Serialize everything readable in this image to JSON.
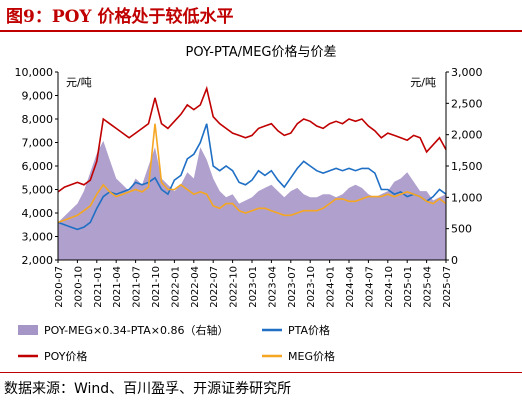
{
  "figure": {
    "title": "图9：POY 价格处于较低水平",
    "source": "数据来源：Wind、百川盈孚、开源证券研究所"
  },
  "colors": {
    "accent": "#c00000",
    "pta": "#1f6fc5",
    "poy": "#c00000",
    "meg": "#f5a623",
    "spread": "#a696c8"
  },
  "chart_data": {
    "type": "line",
    "title": "POY-PTA/MEG价格与价差",
    "left_unit": "元/吨",
    "right_unit": "元/吨",
    "ylim_left": [
      2000,
      10000
    ],
    "ylim_right": [
      0,
      3000
    ],
    "yticks_left": [
      "2,000",
      "3,000",
      "4,000",
      "5,000",
      "6,000",
      "7,000",
      "8,000",
      "9,000",
      "10,000"
    ],
    "yticks_right": [
      "0",
      "500",
      "1,000",
      "1,500",
      "2,000",
      "2,500",
      "3,000"
    ],
    "xticks": [
      "2020-07",
      "2020-10",
      "2021-01",
      "2021-04",
      "2021-07",
      "2021-10",
      "2022-01",
      "2022-04",
      "2022-07",
      "2022-10",
      "2023-01",
      "2023-04",
      "2023-07",
      "2023-10",
      "2024-01",
      "2024-04",
      "2024-07",
      "2024-10",
      "2025-01",
      "2025-04",
      "2025-07"
    ],
    "grid": false,
    "legend_position": "bottom",
    "x": [
      "2020-07",
      "2020-08",
      "2020-09",
      "2020-10",
      "2020-11",
      "2020-12",
      "2021-01",
      "2021-02",
      "2021-03",
      "2021-04",
      "2021-05",
      "2021-06",
      "2021-07",
      "2021-08",
      "2021-09",
      "2021-10",
      "2021-11",
      "2021-12",
      "2022-01",
      "2022-02",
      "2022-03",
      "2022-04",
      "2022-05",
      "2022-06",
      "2022-07",
      "2022-08",
      "2022-09",
      "2022-10",
      "2022-11",
      "2022-12",
      "2023-01",
      "2023-02",
      "2023-03",
      "2023-04",
      "2023-05",
      "2023-06",
      "2023-07",
      "2023-08",
      "2023-09",
      "2023-10",
      "2023-11",
      "2023-12",
      "2024-01",
      "2024-02",
      "2024-03",
      "2024-04",
      "2024-05",
      "2024-06",
      "2024-07",
      "2024-08",
      "2024-09",
      "2024-10",
      "2024-11",
      "2024-12",
      "2025-01",
      "2025-02",
      "2025-03",
      "2025-04",
      "2025-05",
      "2025-06",
      "2025-07"
    ],
    "series": [
      {
        "name": "POY-MEG×0.34-PTA×0.86（右轴）",
        "type": "area",
        "axis": "right",
        "values": [
          600,
          700,
          800,
          900,
          1100,
          1400,
          1700,
          1900,
          1600,
          1300,
          1200,
          1100,
          1300,
          1200,
          1500,
          1800,
          1300,
          1200,
          1100,
          1200,
          1400,
          1300,
          1800,
          1600,
          1300,
          1100,
          1000,
          1050,
          900,
          950,
          1000,
          1100,
          1150,
          1200,
          1100,
          1000,
          1100,
          1150,
          1050,
          1000,
          1000,
          1050,
          1050,
          1000,
          1050,
          1150,
          1200,
          1150,
          1050,
          1000,
          1050,
          1100,
          1250,
          1300,
          1400,
          1250,
          1100,
          1100,
          950,
          1000,
          1050
        ]
      },
      {
        "name": "PTA价格",
        "type": "line",
        "axis": "left",
        "values": [
          3600,
          3500,
          3400,
          3300,
          3400,
          3600,
          4200,
          4700,
          4900,
          4800,
          4900,
          5000,
          5300,
          5200,
          5300,
          5500,
          5000,
          4800,
          5400,
          5600,
          6300,
          6500,
          7000,
          7800,
          6000,
          5800,
          6000,
          5800,
          5300,
          5200,
          5400,
          5800,
          5600,
          5800,
          5400,
          5100,
          5500,
          5900,
          6200,
          6000,
          5800,
          5700,
          5800,
          5900,
          5800,
          5900,
          5800,
          5900,
          5900,
          5700,
          5000,
          5000,
          4800,
          4900,
          4700,
          4800,
          4700,
          4500,
          4700,
          5000,
          4800
        ]
      },
      {
        "name": "POY价格",
        "type": "line",
        "axis": "left",
        "values": [
          4900,
          5100,
          5200,
          5300,
          5200,
          5400,
          6200,
          8000,
          7800,
          7600,
          7400,
          7200,
          7400,
          7600,
          7800,
          8900,
          7800,
          7600,
          7900,
          8200,
          8600,
          8400,
          8600,
          9300,
          8100,
          7800,
          7600,
          7400,
          7300,
          7200,
          7300,
          7600,
          7700,
          7800,
          7500,
          7300,
          7400,
          7800,
          8000,
          7900,
          7700,
          7600,
          7800,
          7900,
          7800,
          8000,
          7900,
          8000,
          7700,
          7500,
          7200,
          7400,
          7300,
          7200,
          7100,
          7300,
          7200,
          6600,
          6900,
          7200,
          6700
        ]
      },
      {
        "name": "MEG价格",
        "type": "line",
        "axis": "left",
        "values": [
          3600,
          3700,
          3800,
          3900,
          4100,
          4300,
          4800,
          5200,
          4900,
          4700,
          4800,
          4900,
          5000,
          4900,
          5100,
          7800,
          5300,
          5000,
          5000,
          5200,
          5000,
          4800,
          4900,
          4800,
          4300,
          4200,
          4400,
          4400,
          4100,
          4000,
          4100,
          4200,
          4200,
          4100,
          4000,
          3900,
          3900,
          4000,
          4100,
          4100,
          4100,
          4200,
          4400,
          4600,
          4600,
          4500,
          4500,
          4600,
          4700,
          4700,
          4700,
          4800,
          4700,
          4800,
          4900,
          4800,
          4700,
          4500,
          4400,
          4600,
          4400
        ]
      }
    ]
  },
  "legend": {
    "spread": "POY-MEG×0.34-PTA×0.86（右轴）",
    "pta": "PTA价格",
    "poy": "POY价格",
    "meg": "MEG价格"
  }
}
